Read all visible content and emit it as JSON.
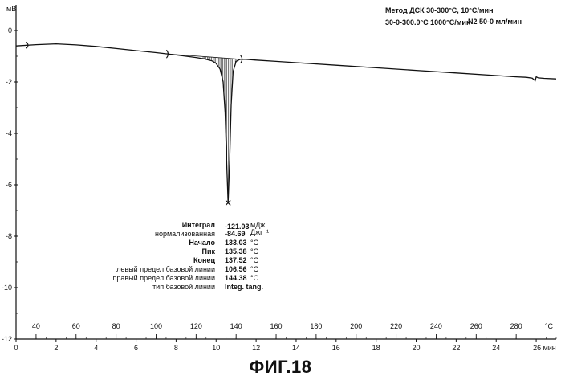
{
  "chart_data": {
    "type": "line",
    "y_unit": "мВ",
    "x_unit_temp": "°C",
    "x_unit_time": "мин",
    "header": {
      "line1": "Метод ДСК 30-300°C, 10°C/мин",
      "line2": "30-0-300.0°C 1000°C/мин",
      "line3": "N2 50-0 мл/мин"
    },
    "y_ticks": [
      0,
      -2,
      -4,
      -6,
      -8,
      -10,
      -12
    ],
    "y_tick_labels": [
      "0",
      "-2",
      "-4",
      "-6",
      "-8",
      "-10",
      "-12"
    ],
    "ylim": [
      -12,
      1
    ],
    "time_ticks": [
      0,
      2,
      4,
      6,
      8,
      10,
      12,
      14,
      16,
      18,
      20,
      22,
      24,
      26
    ],
    "time_tick_labels": [
      "0",
      "2",
      "4",
      "6",
      "8",
      "10",
      "12",
      "14",
      "16",
      "18",
      "20",
      "22",
      "24",
      "26 мин"
    ],
    "xlim_time": [
      0,
      27
    ],
    "temp_ticks": [
      40,
      60,
      80,
      100,
      120,
      140,
      160,
      180,
      200,
      220,
      240,
      260,
      280
    ],
    "temp_tick_labels": [
      "40",
      "60",
      "80",
      "100",
      "120",
      "140",
      "160",
      "180",
      "200",
      "220",
      "240",
      "260",
      "280"
    ],
    "temp_unit_label": "°C",
    "series": [
      {
        "x_time": [
          0.0,
          1.0,
          2.0,
          3.0,
          4.0,
          5.0,
          6.0,
          7.0,
          8.0,
          9.0,
          9.4,
          9.8,
          10.0,
          10.2,
          10.35,
          10.45,
          10.53,
          10.6,
          10.68,
          10.75,
          10.85,
          11.0,
          11.2,
          11.5,
          12.0,
          13.0,
          14.0,
          16.0,
          18.0,
          20.0,
          22.0,
          24.0,
          25.0,
          25.5,
          25.8,
          25.95,
          26.0,
          26.1,
          26.4,
          27.0
        ],
        "y": [
          -0.6,
          -0.55,
          -0.52,
          -0.56,
          -0.62,
          -0.7,
          -0.78,
          -0.86,
          -0.95,
          -1.05,
          -1.1,
          -1.18,
          -1.28,
          -1.5,
          -2.0,
          -3.2,
          -5.2,
          -6.7,
          -5.0,
          -2.9,
          -1.6,
          -1.2,
          -1.12,
          -1.12,
          -1.15,
          -1.2,
          -1.25,
          -1.35,
          -1.45,
          -1.55,
          -1.65,
          -1.75,
          -1.8,
          -1.82,
          -1.85,
          -1.95,
          -1.8,
          -1.84,
          -1.86,
          -1.88
        ]
      }
    ],
    "integration_limits_time": [
      7.6,
      11.3
    ],
    "peak_marker_time": 10.6,
    "peak_marker_y": -6.7,
    "results": {
      "labels": [
        "Интеграл",
        "нормализованная",
        "Начало",
        "Пик",
        "Конец",
        "левый предел базовой линии",
        "правый предел базовой линии",
        "тип базовой линии"
      ],
      "values": [
        "-121.03",
        "-84.69",
        "133.03",
        "135.38",
        "137.52",
        "106.56",
        "144.38",
        "Integ. tang."
      ],
      "units": [
        "мДж",
        "Джг⁻¹",
        "°C",
        "°C",
        "°C",
        "°C",
        "°C",
        ""
      ]
    }
  },
  "caption": "ФИГ.18"
}
